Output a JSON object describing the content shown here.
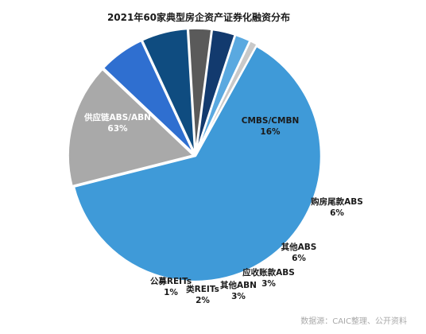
{
  "chart_data": {
    "type": "pie",
    "title": "2021年60家典型房企资产证券化融资分布",
    "slices": [
      {
        "name": "供应链ABS/ABN",
        "pct_label": "63%",
        "value": 63,
        "color": "#3f9ad8",
        "label_color": "#ffffff"
      },
      {
        "name": "CMBS/CMBN",
        "pct_label": "16%",
        "value": 16,
        "color": "#a9a9a9",
        "label_color": "#1a1a1a"
      },
      {
        "name": "购房尾款ABS",
        "pct_label": "6%",
        "value": 6,
        "color": "#2f6fd0",
        "label_color": "#1a1a1a"
      },
      {
        "name": "其他ABS",
        "pct_label": "6%",
        "value": 6,
        "color": "#0f4c80",
        "label_color": "#1a1a1a"
      },
      {
        "name": "应收账款ABS",
        "pct_label": "3%",
        "value": 3,
        "color": "#5a5a5a",
        "label_color": "#1a1a1a"
      },
      {
        "name": "其他ABN",
        "pct_label": "3%",
        "value": 3,
        "color": "#123a6e",
        "label_color": "#1a1a1a"
      },
      {
        "name": "类REITs",
        "pct_label": "2%",
        "value": 2,
        "color": "#5aa9e0",
        "label_color": "#1a1a1a"
      },
      {
        "name": "公募REITs",
        "pct_label": "1%",
        "value": 1,
        "color": "#c9c9c9",
        "label_color": "#1a1a1a"
      }
    ]
  },
  "source_note": "数据源：CAIC整理、公开资料"
}
